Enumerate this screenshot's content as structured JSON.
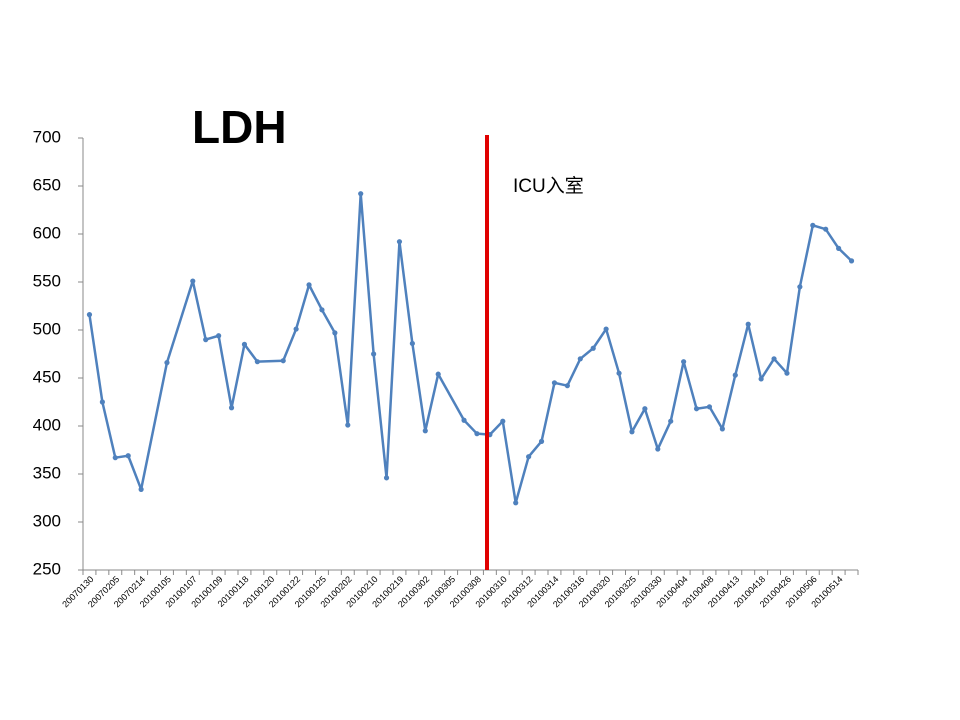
{
  "chart_data": {
    "type": "line",
    "title": "LDH",
    "annotation": "ICU入室",
    "categories": [
      "20070130",
      null,
      "20070205",
      null,
      "20070214",
      null,
      "20100105",
      null,
      "20100107",
      null,
      "20100109",
      null,
      "20100118",
      null,
      "20100120",
      null,
      "20100122",
      null,
      "20100125",
      null,
      "20100202",
      null,
      "20100210",
      null,
      "20100219",
      null,
      "20100302",
      null,
      "20100305",
      null,
      "20100308",
      null,
      "20100310",
      null,
      "20100312",
      null,
      "20100314",
      null,
      "20100316",
      null,
      "20100320",
      null,
      "20100325",
      null,
      "20100330",
      null,
      "20100404",
      null,
      "20100408",
      null,
      "20100413",
      null,
      "20100418",
      null,
      "20100426",
      null,
      "20100506",
      null,
      "20100514",
      null
    ],
    "series": [
      {
        "name": "LDH",
        "color": "#4f81bd",
        "values": [
          516,
          425,
          367,
          369,
          334,
          null,
          466,
          null,
          551,
          490,
          494,
          419,
          485,
          467,
          null,
          468,
          501,
          547,
          521,
          497,
          401,
          642,
          475,
          346,
          592,
          486,
          395,
          454,
          null,
          406,
          392,
          391,
          405,
          320,
          368,
          384,
          445,
          442,
          470,
          481,
          501,
          455,
          394,
          418,
          376,
          405,
          467,
          418,
          420,
          397,
          453,
          506,
          449,
          470,
          455,
          545,
          609,
          605,
          585,
          572
        ]
      }
    ],
    "ylim": [
      250,
      700
    ],
    "yticks": [
      250,
      300,
      350,
      400,
      450,
      500,
      550,
      600,
      650,
      700
    ],
    "marker_color": "#e00000"
  }
}
